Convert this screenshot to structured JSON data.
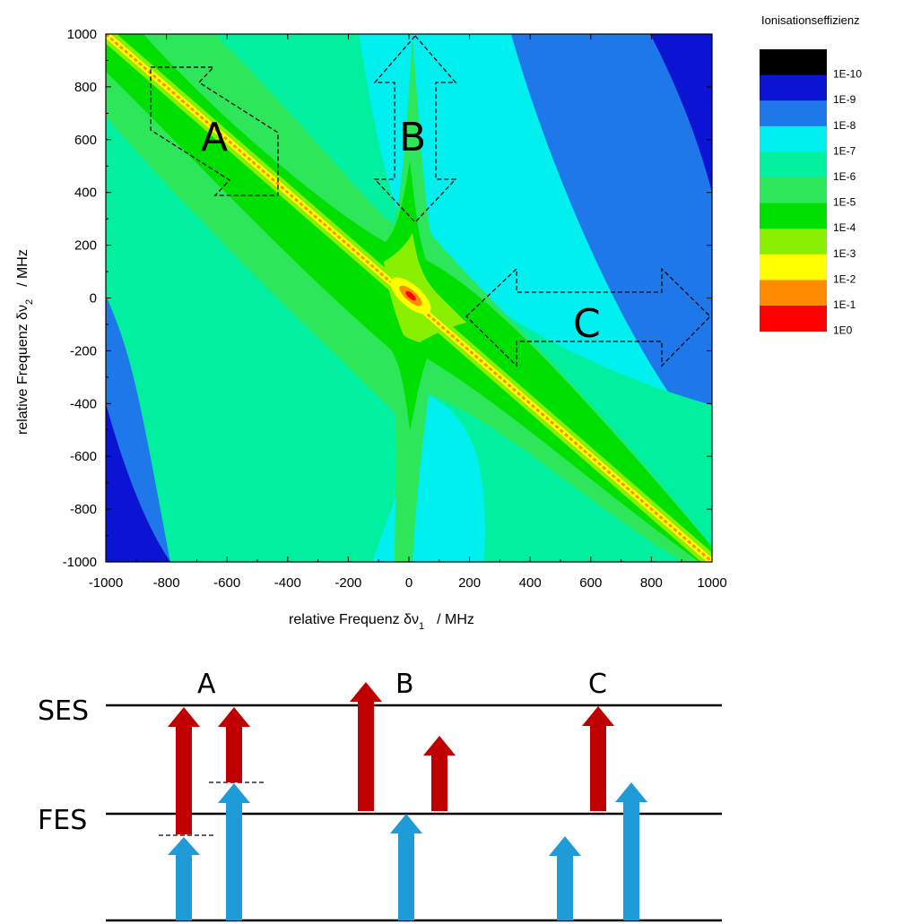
{
  "chart_data": {
    "type": "heatmap",
    "title": "",
    "xlabel": "relative Frequenz δν₁ / MHz",
    "ylabel": "relative Frequenz δν₂ / MHz",
    "xlabel_main": "relative Frequenz δν",
    "xlabel_sub": "1",
    "xlabel_unit": "/ MHz",
    "ylabel_main": "relative Frequenz δν",
    "ylabel_sub": "2",
    "ylabel_unit": "/ MHz",
    "xlim": [
      -1000,
      1000
    ],
    "ylim": [
      -1000,
      1000
    ],
    "xticks": [
      "-1000",
      "-800",
      "-600",
      "-400",
      "-200",
      "0",
      "200",
      "400",
      "600",
      "800",
      "1000"
    ],
    "yticks": [
      "1000",
      "800",
      "600",
      "400",
      "200",
      "0",
      "-200",
      "-400",
      "-600",
      "-800",
      "-1000"
    ],
    "colorbar": {
      "title": "Ionisationseffizienz",
      "bands": [
        {
          "color": "#000000"
        },
        {
          "color": "#0a14d2"
        },
        {
          "color": "#1e78ea"
        },
        {
          "color": "#00f0f0"
        },
        {
          "color": "#00f0a0"
        },
        {
          "color": "#2ee65a"
        },
        {
          "color": "#00e000"
        },
        {
          "color": "#88f000"
        },
        {
          "color": "#ffff00"
        },
        {
          "color": "#ff8c00"
        },
        {
          "color": "#ff0000"
        }
      ],
      "labels": [
        "1E-10",
        "1E-9",
        "1E-8",
        "1E-7",
        "1E-6",
        "1E-5",
        "1E-4",
        "1E-3",
        "1E-2",
        "1E-1",
        "1E0"
      ]
    },
    "regions": [
      {
        "label": "A",
        "direction": "along diagonal δν₁ = −δν₂"
      },
      {
        "label": "B",
        "direction": "vertical along δν₁ = 0"
      },
      {
        "label": "C",
        "direction": "horizontal along δν₂ = 0"
      }
    ]
  },
  "diagram": {
    "levels": [
      {
        "label": "SES"
      },
      {
        "label": "FES"
      },
      {
        "label": ""
      }
    ],
    "columns": [
      {
        "label": "A"
      },
      {
        "label": "B"
      },
      {
        "label": "C"
      }
    ],
    "colors": {
      "red_arrow": "#c00000",
      "blue_arrow": "#1f9bd7"
    }
  }
}
